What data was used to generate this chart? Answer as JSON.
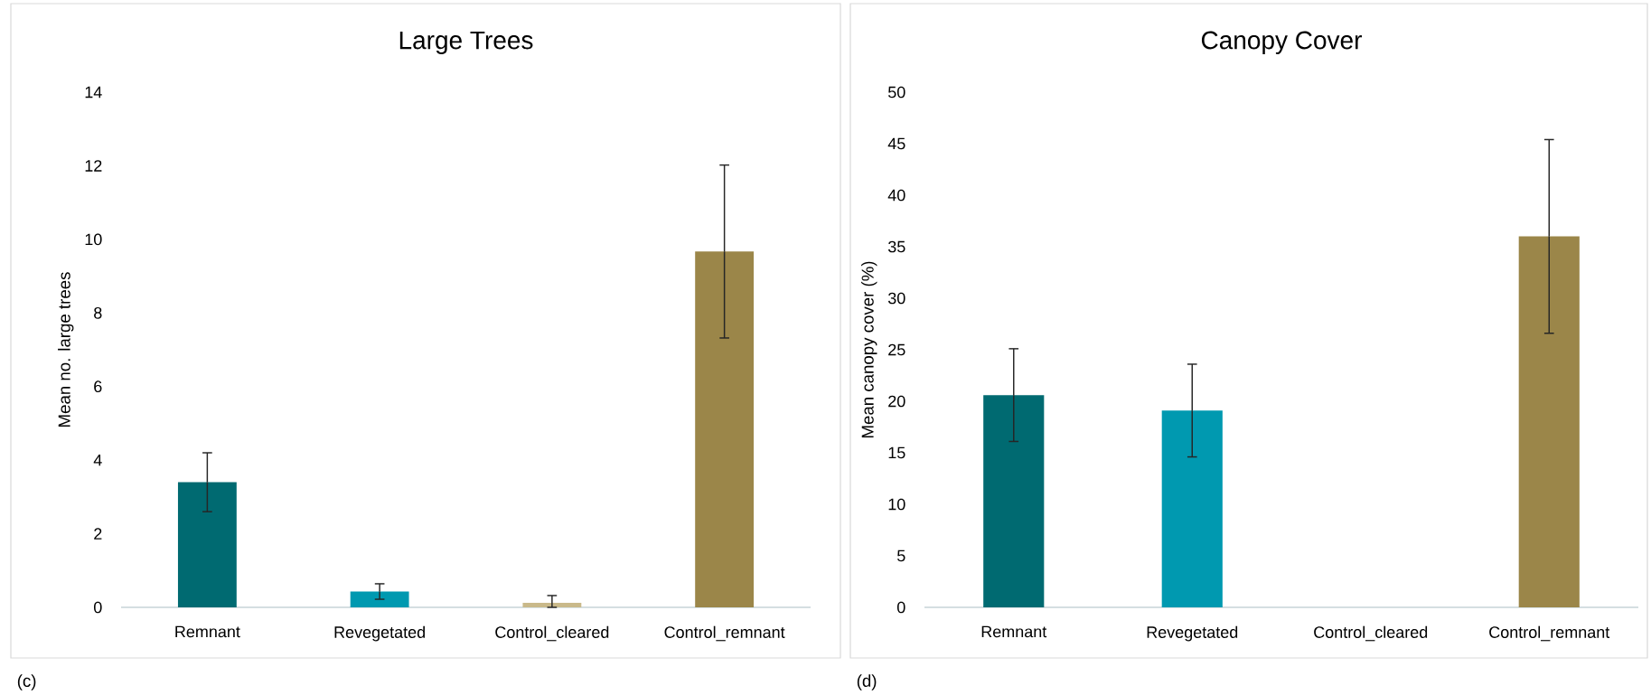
{
  "chart_data": [
    {
      "type": "bar",
      "title": "Large Trees",
      "ylabel": "Mean no. large trees",
      "categories": [
        "Remnant",
        "Revegetated",
        "Control_cleared",
        "Control_remnant"
      ],
      "values": [
        3.4,
        0.43,
        0.12,
        9.67
      ],
      "colors": [
        "#006a71",
        "#0099b0",
        "#c9b98a",
        "#9b8649"
      ],
      "errors": [
        0.8,
        0.21,
        [
          0,
          0.32
        ],
        2.35
      ],
      "ylim": [
        0,
        14
      ],
      "yticks": [
        0,
        2,
        4,
        6,
        8,
        10,
        12,
        14
      ],
      "annotations": [
        "(c)"
      ]
    },
    {
      "type": "bar",
      "title": "Canopy Cover",
      "ylabel": "Mean canopy cover (%)",
      "categories": [
        "Remnant",
        "Revegetated",
        "Control_cleared",
        "Control_remnant"
      ],
      "values": [
        20.6,
        19.1,
        0,
        36.0
      ],
      "colors": [
        "#006a71",
        "#0099b0",
        "#c9b98a",
        "#9b8649"
      ],
      "errors": [
        4.5,
        4.5,
        null,
        9.4
      ],
      "ylim": [
        0,
        50
      ],
      "yticks": [
        0,
        5,
        10,
        15,
        20,
        25,
        30,
        35,
        40,
        45,
        50
      ],
      "annotations": [
        "(d)"
      ]
    }
  ]
}
